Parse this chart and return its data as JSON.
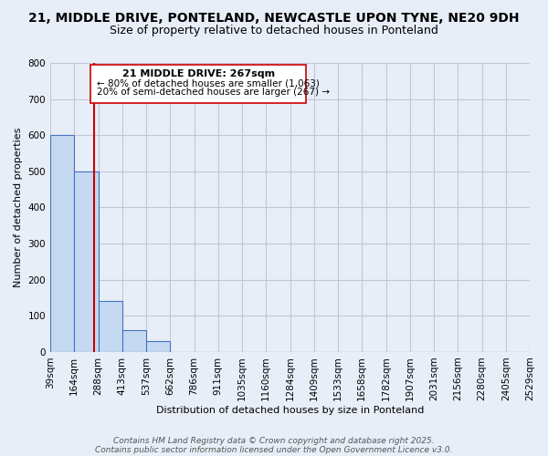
{
  "title_line1": "21, MIDDLE DRIVE, PONTELAND, NEWCASTLE UPON TYNE, NE20 9DH",
  "title_line2": "Size of property relative to detached houses in Ponteland",
  "xlabel": "Distribution of detached houses by size in Ponteland",
  "ylabel": "Number of detached properties",
  "bar_values": [
    600,
    500,
    140,
    60,
    30,
    0,
    0,
    0,
    0,
    0,
    0,
    0,
    0,
    0,
    0,
    0,
    0,
    0,
    0,
    0
  ],
  "bin_labels": [
    "39sqm",
    "164sqm",
    "288sqm",
    "413sqm",
    "537sqm",
    "662sqm",
    "786sqm",
    "911sqm",
    "1035sqm",
    "1160sqm",
    "1284sqm",
    "1409sqm",
    "1533sqm",
    "1658sqm",
    "1782sqm",
    "1907sqm",
    "2031sqm",
    "2156sqm",
    "2280sqm",
    "2405sqm",
    "2529sqm"
  ],
  "bar_color": "#c5d9f0",
  "bar_edge_color": "#4472c4",
  "grid_color": "#c0c8d8",
  "background_color": "#e8eef8",
  "vline_color": "#cc0000",
  "ylim": [
    0,
    800
  ],
  "yticks": [
    0,
    100,
    200,
    300,
    400,
    500,
    600,
    700,
    800
  ],
  "annotation_title": "21 MIDDLE DRIVE: 267sqm",
  "annotation_line1": "← 80% of detached houses are smaller (1,063)",
  "annotation_line2": "20% of semi-detached houses are larger (267) →",
  "footer_line1": "Contains HM Land Registry data © Crown copyright and database right 2025.",
  "footer_line2": "Contains public sector information licensed under the Open Government Licence v3.0.",
  "title_fontsize": 10,
  "subtitle_fontsize": 9,
  "axis_label_fontsize": 8,
  "tick_fontsize": 7.5,
  "annotation_fontsize": 8,
  "footer_fontsize": 6.5
}
